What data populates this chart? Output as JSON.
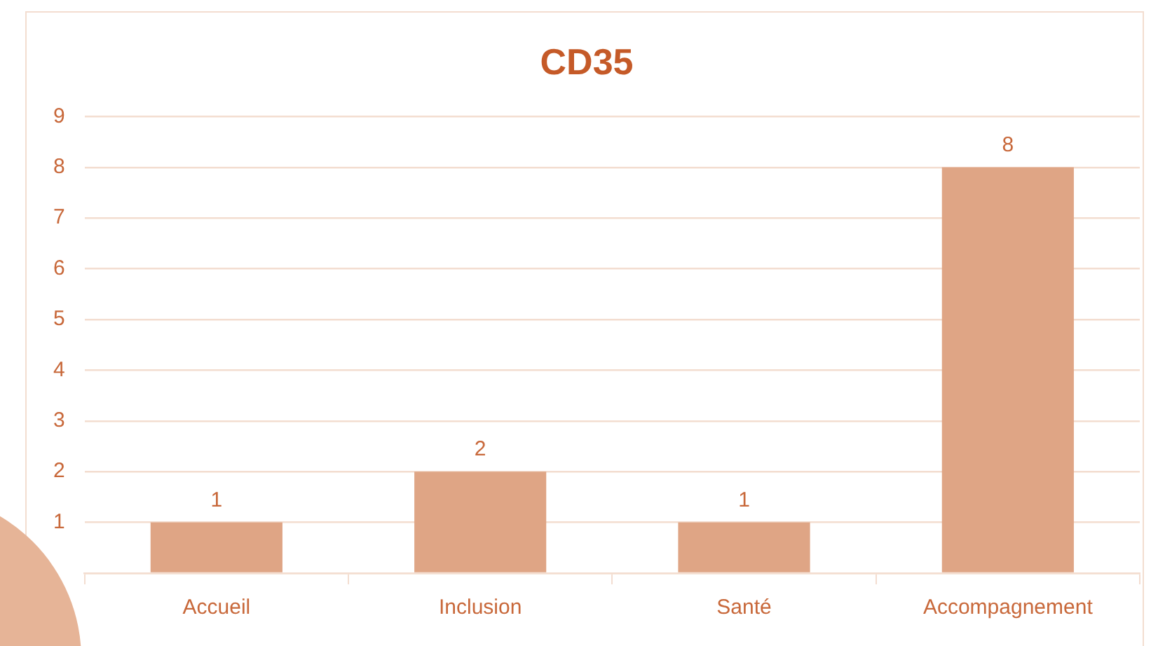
{
  "chart_data": {
    "type": "bar",
    "title": "CD35",
    "categories": [
      "Accueil",
      "Inclusion",
      "Santé",
      "Accompagnement"
    ],
    "values": [
      1,
      2,
      1,
      8
    ],
    "color": "#dfa585",
    "ylim": [
      0,
      9
    ],
    "yticks": [
      {
        "value": 0,
        "label": null
      },
      1,
      2,
      3,
      4,
      5,
      6,
      7,
      8,
      9
    ],
    "grid": "y",
    "data_labels": true,
    "legend": false
  }
}
